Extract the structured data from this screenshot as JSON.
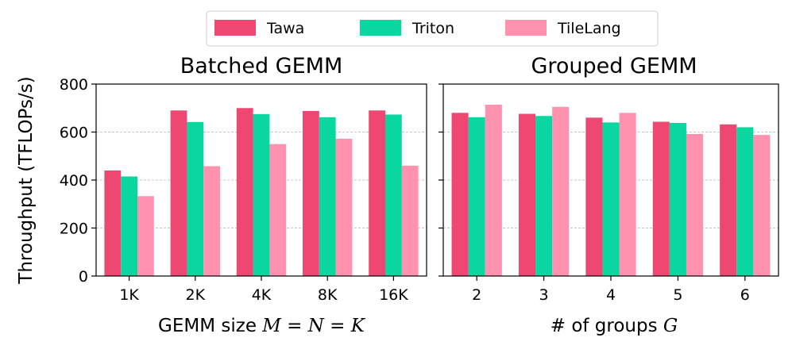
{
  "ylabel": "Throughput (TFLOPs/s)",
  "legend": {
    "placement": "top-center",
    "entries": [
      {
        "name": "Tawa",
        "color": "#EE4872"
      },
      {
        "name": "Triton",
        "color": "#0AD6A0"
      },
      {
        "name": "TileLang",
        "color": "#FF92AE"
      }
    ]
  },
  "chart_data": [
    {
      "type": "bar",
      "title": "Batched GEMM",
      "xlabel_prefix": "GEMM size ",
      "xlabel_math": "M = N = K",
      "ylabel": "Throughput (TFLOPs/s)",
      "ylim": [
        0,
        800
      ],
      "yticks": [
        0,
        200,
        400,
        600,
        800
      ],
      "grid": "y-dashed",
      "categories": [
        "1K",
        "2K",
        "4K",
        "8K",
        "16K"
      ],
      "series": [
        {
          "name": "Tawa",
          "color": "#EE4872",
          "values": [
            440,
            690,
            700,
            688,
            690
          ]
        },
        {
          "name": "Triton",
          "color": "#0AD6A0",
          "values": [
            415,
            642,
            675,
            662,
            673
          ]
        },
        {
          "name": "TileLang",
          "color": "#FF92AE",
          "values": [
            333,
            458,
            550,
            572,
            460
          ]
        }
      ]
    },
    {
      "type": "bar",
      "title": "Grouped GEMM",
      "xlabel_prefix": "# of groups ",
      "xlabel_math": "G",
      "ylim": [
        0,
        800
      ],
      "yticks": [
        0,
        200,
        400,
        600,
        800
      ],
      "grid": "y-dashed",
      "categories": [
        "2",
        "3",
        "4",
        "5",
        "6"
      ],
      "series": [
        {
          "name": "Tawa",
          "color": "#EE4872",
          "values": [
            680,
            676,
            660,
            643,
            632
          ]
        },
        {
          "name": "Triton",
          "color": "#0AD6A0",
          "values": [
            662,
            667,
            640,
            638,
            620
          ]
        },
        {
          "name": "TileLang",
          "color": "#FF92AE",
          "values": [
            714,
            705,
            680,
            592,
            588
          ]
        }
      ]
    }
  ]
}
